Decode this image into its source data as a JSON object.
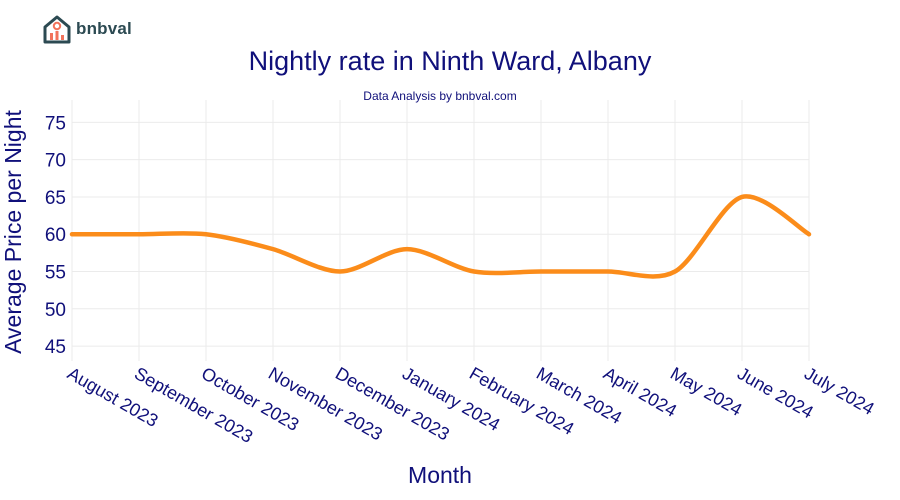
{
  "brand": {
    "name": "bnbval"
  },
  "colors": {
    "line": "#fb8c1a",
    "text": "#10107a",
    "grid": "#ebebeb",
    "logo_dark": "#2c4a52",
    "logo_accent": "#f2735b"
  },
  "chart_data": {
    "type": "line",
    "title": "Nightly rate in Ninth Ward, Albany",
    "subtitle": "Data Analysis by bnbval.com",
    "xlabel": "Month",
    "ylabel": "Average Price per Night",
    "categories": [
      "August 2023",
      "September 2023",
      "October 2023",
      "November 2023",
      "December 2023",
      "January 2024",
      "February 2024",
      "March 2024",
      "April 2024",
      "May 2024",
      "June 2024",
      "July 2024"
    ],
    "values": [
      60,
      60,
      60,
      58,
      55,
      58,
      55,
      55,
      55,
      55,
      65,
      60
    ],
    "ylim": [
      43,
      78
    ],
    "yticks": [
      45,
      50,
      55,
      60,
      65,
      70,
      75
    ],
    "grid": true,
    "legend": "none"
  }
}
